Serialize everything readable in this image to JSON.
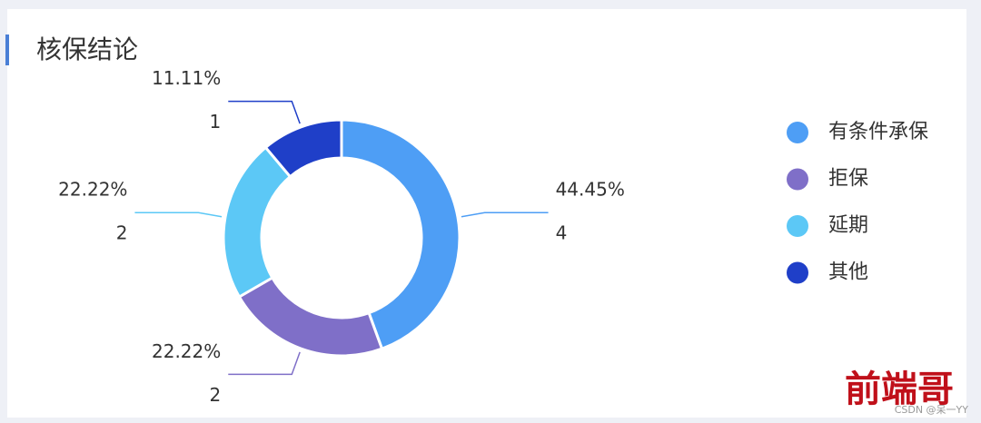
{
  "chart_data": {
    "type": "donut",
    "title": "核保结论",
    "categories": [
      "有条件承保",
      "拒保",
      "延期",
      "其他"
    ],
    "values": [
      4,
      2,
      2,
      1
    ],
    "percent_labels": [
      "44.45%",
      "22.22%",
      "22.22%",
      "11.11%"
    ],
    "colors": [
      "#4e9ef5",
      "#7f6fc8",
      "#5cc8f6",
      "#1f3fc8"
    ],
    "legend": "right",
    "watermark": "前端哥",
    "credit": "CSDN @呆一YY"
  }
}
